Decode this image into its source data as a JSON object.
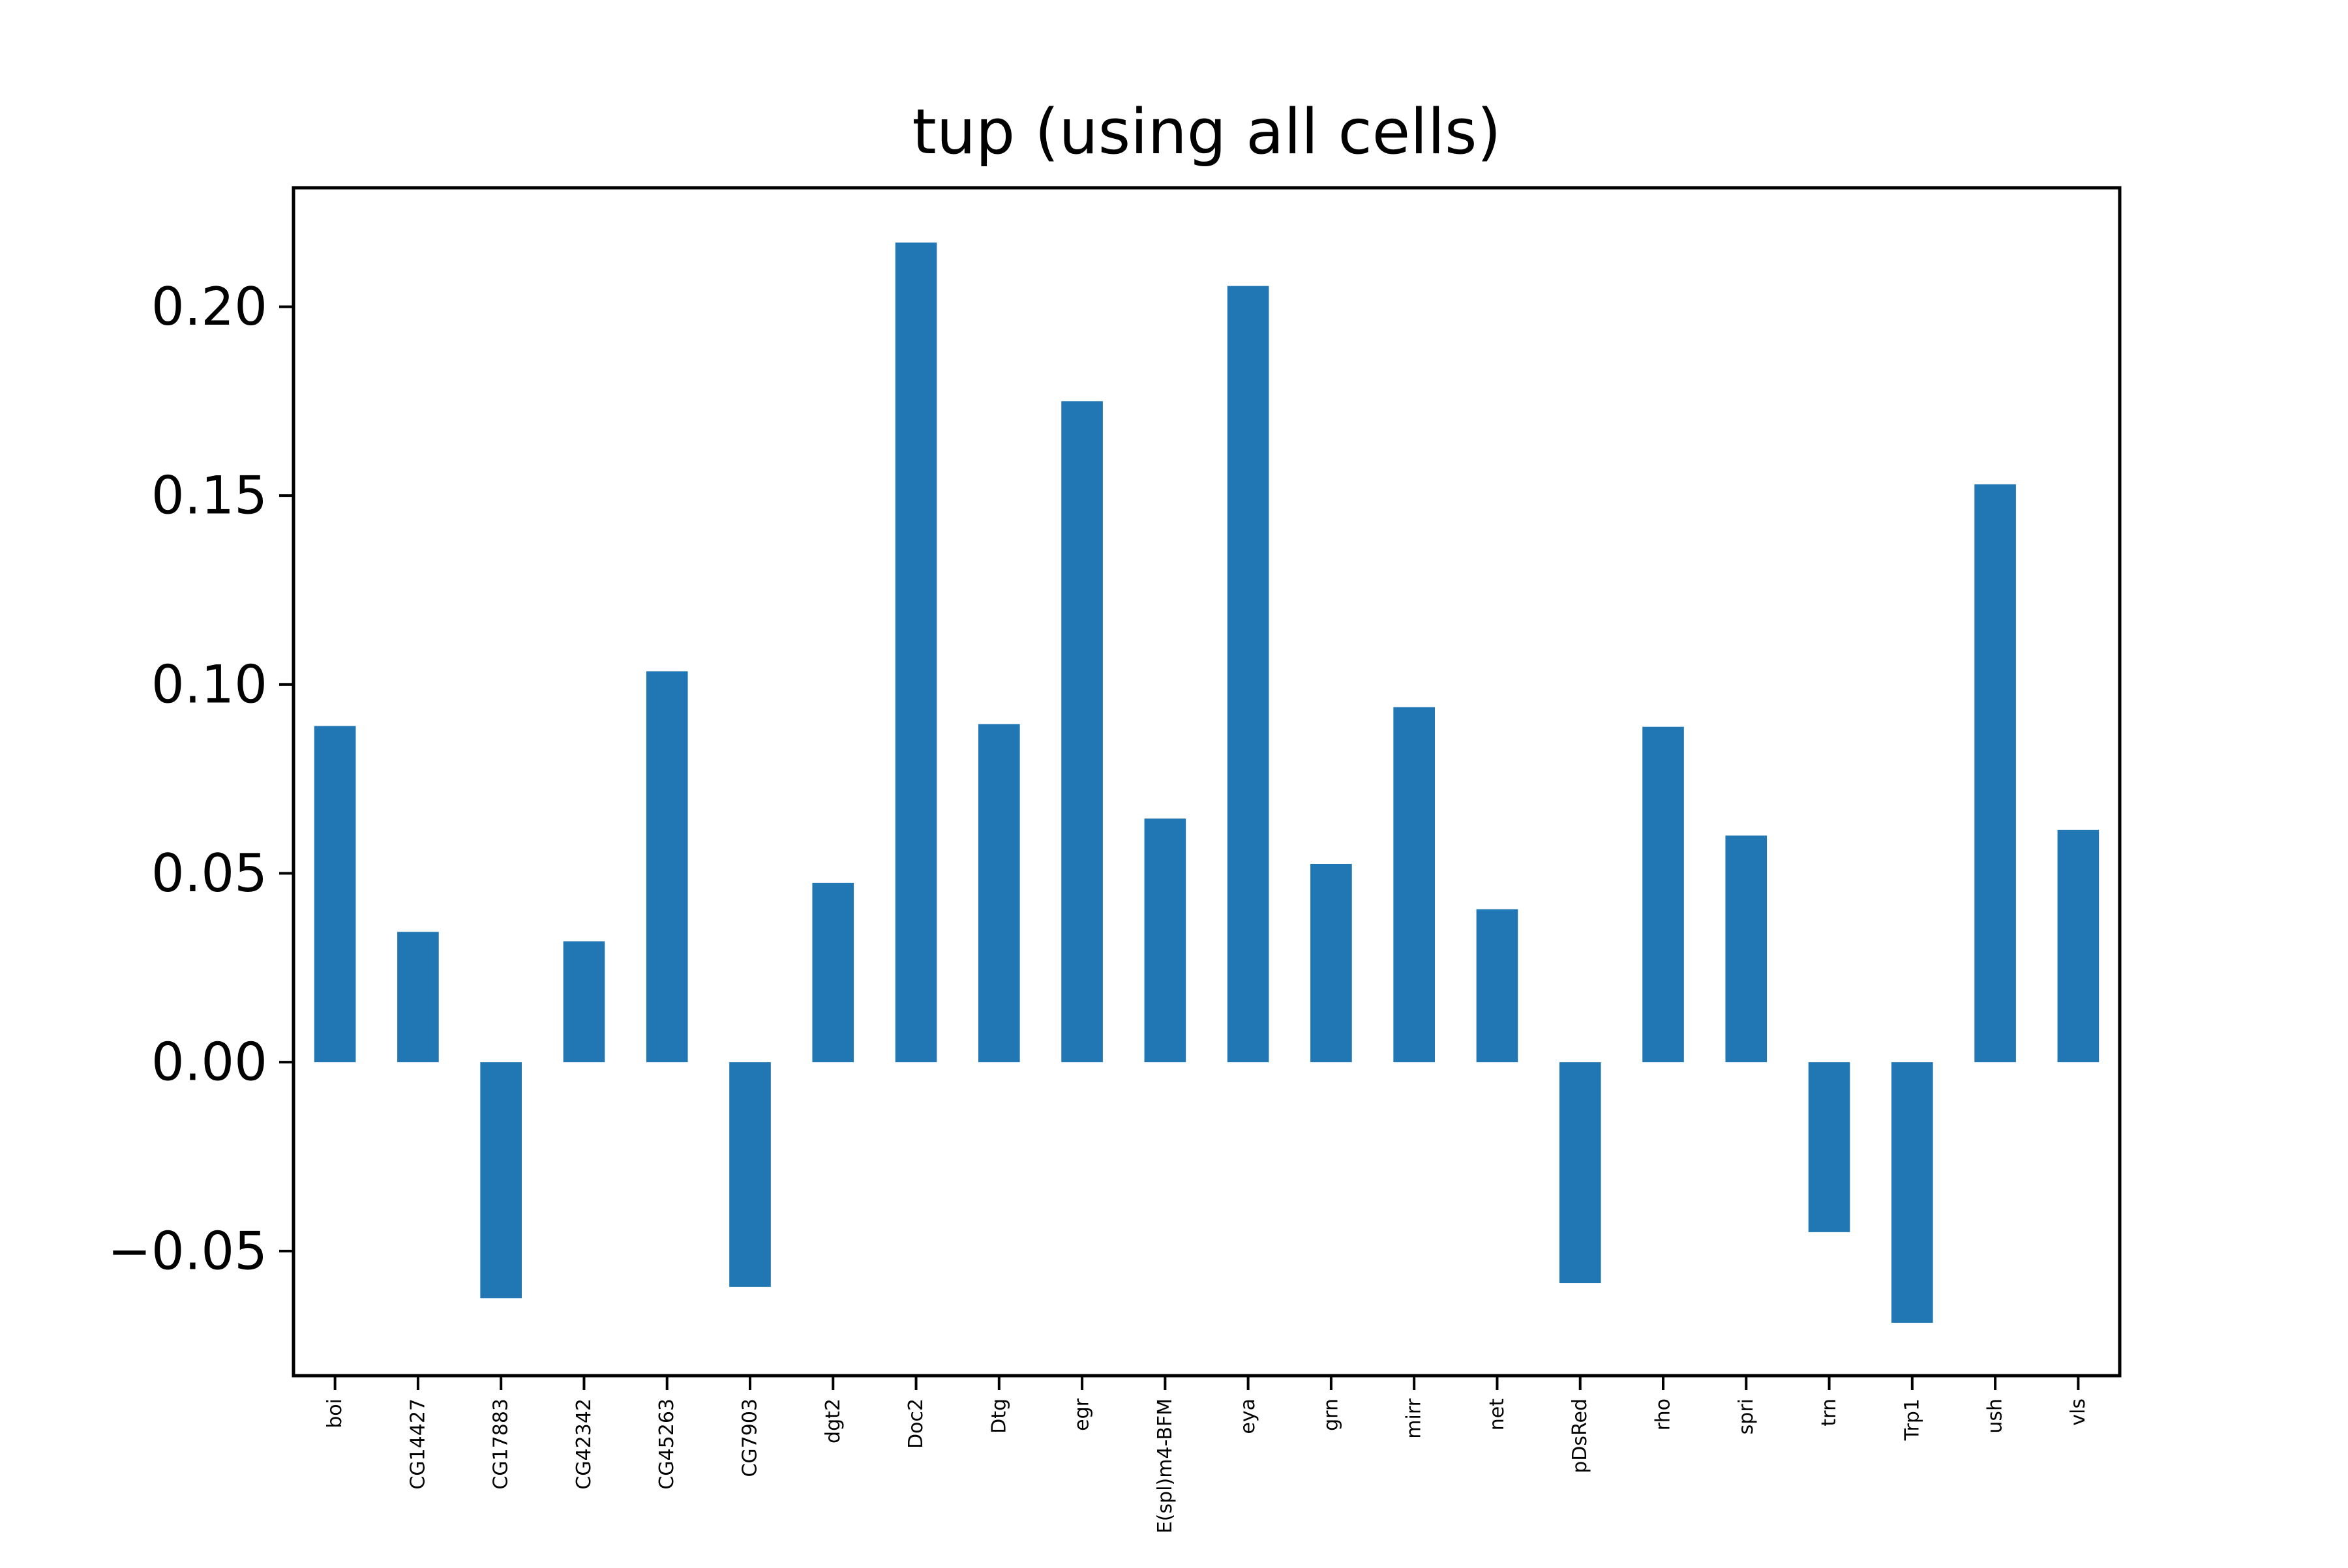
{
  "chart_data": {
    "type": "bar",
    "title": "tup (using all cells)",
    "xlabel": "",
    "ylabel": "",
    "categories": [
      "boi",
      "CG14427",
      "CG17883",
      "CG42342",
      "CG45263",
      "CG7903",
      "dgt2",
      "Doc2",
      "Dtg",
      "egr",
      "E(spl)m4-BFM",
      "eya",
      "grn",
      "mirr",
      "net",
      "pDsRed",
      "rho",
      "spri",
      "trn",
      "Trp1",
      "ush",
      "vls"
    ],
    "values": [
      0.089,
      0.0345,
      -0.0625,
      0.032,
      0.1035,
      -0.0595,
      0.0475,
      0.217,
      0.0895,
      0.175,
      0.0645,
      0.2055,
      0.0525,
      0.094,
      0.0405,
      -0.0585,
      0.0888,
      0.06,
      -0.045,
      -0.069,
      0.153,
      0.0615
    ],
    "ylim": [
      -0.083,
      0.2315
    ],
    "yticks": [
      -0.05,
      0.0,
      0.05,
      0.1,
      0.15,
      0.2
    ],
    "ytick_labels": [
      "−0.05",
      "0.00",
      "0.05",
      "0.10",
      "0.15",
      "0.20"
    ],
    "bar_color": "#2177b4",
    "grid": false,
    "legend": "none"
  }
}
